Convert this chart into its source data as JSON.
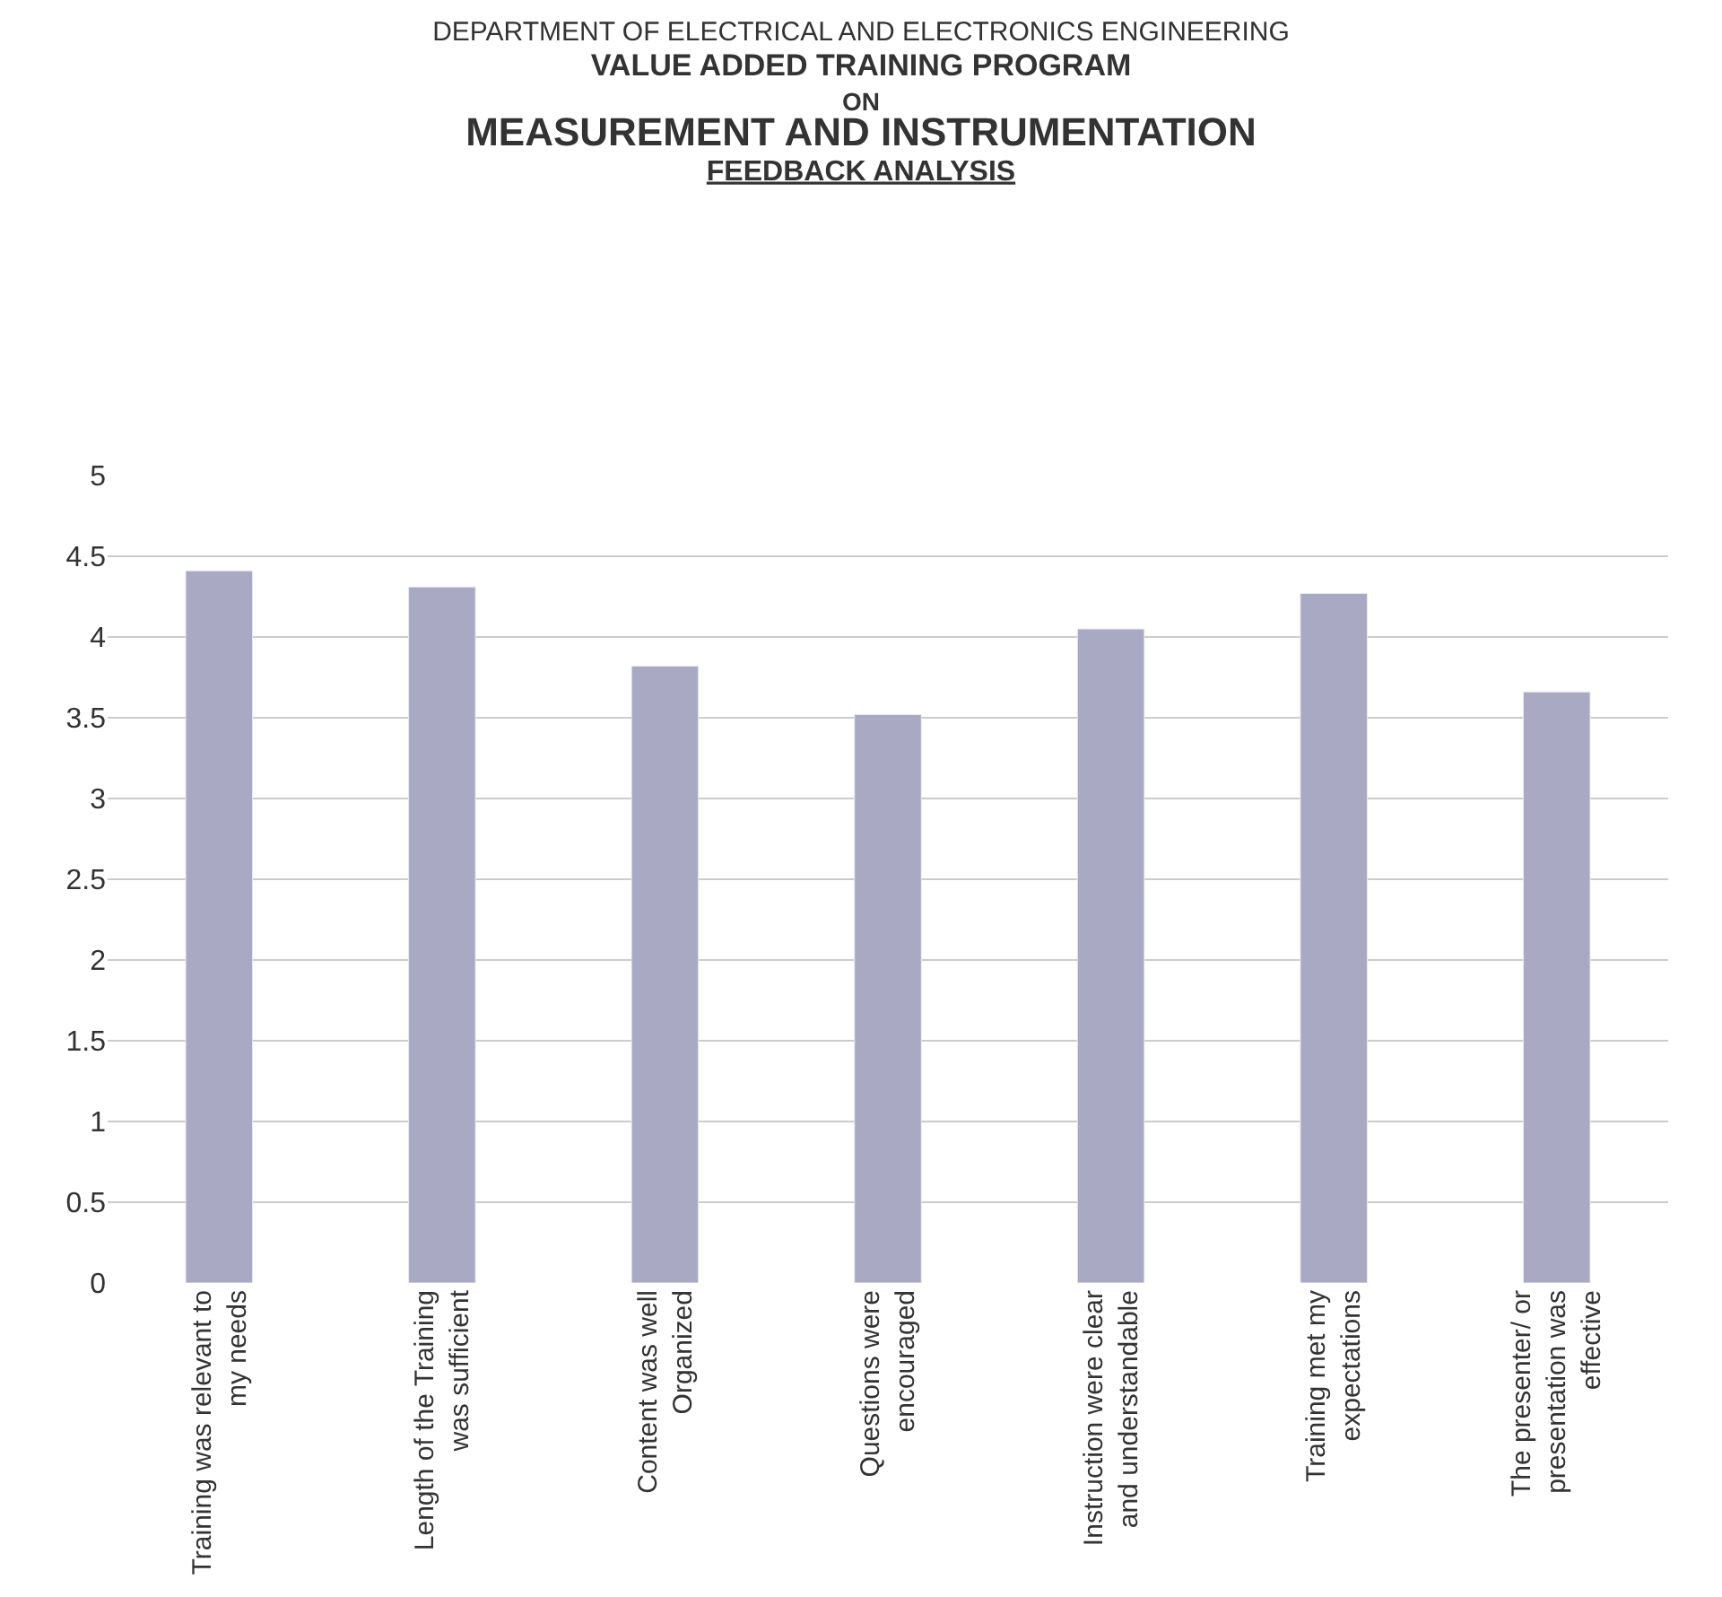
{
  "chart_data": {
    "type": "bar",
    "title": "DEPARTMENT OF ELECTRICAL AND ELECTRONICS ENGINEERING",
    "subtitle": "VALUE ADDED TRAINING PROGRAM\nON\nMEASUREMENT AND INSTRUMENTATION",
    "annotations": [
      "FEEDBACK ANALYSIS"
    ],
    "categories": [
      "Training was relevant to my needs",
      "Length of the Training was sufficient",
      "Content was well Organized",
      "Questions were encouraged",
      "Instruction were clear and understandable",
      "Training met my expectations",
      "The presenter/ or presentation was effective"
    ],
    "values": [
      4.41,
      4.31,
      3.82,
      3.52,
      4.05,
      4.27,
      3.66
    ],
    "color": "#a9a9c4",
    "ylim": [
      0,
      5
    ],
    "yticks": [
      0,
      0.5,
      1,
      1.5,
      2,
      2.5,
      3,
      3.5,
      4,
      4.5,
      5
    ],
    "grid": "y",
    "legend": false
  }
}
